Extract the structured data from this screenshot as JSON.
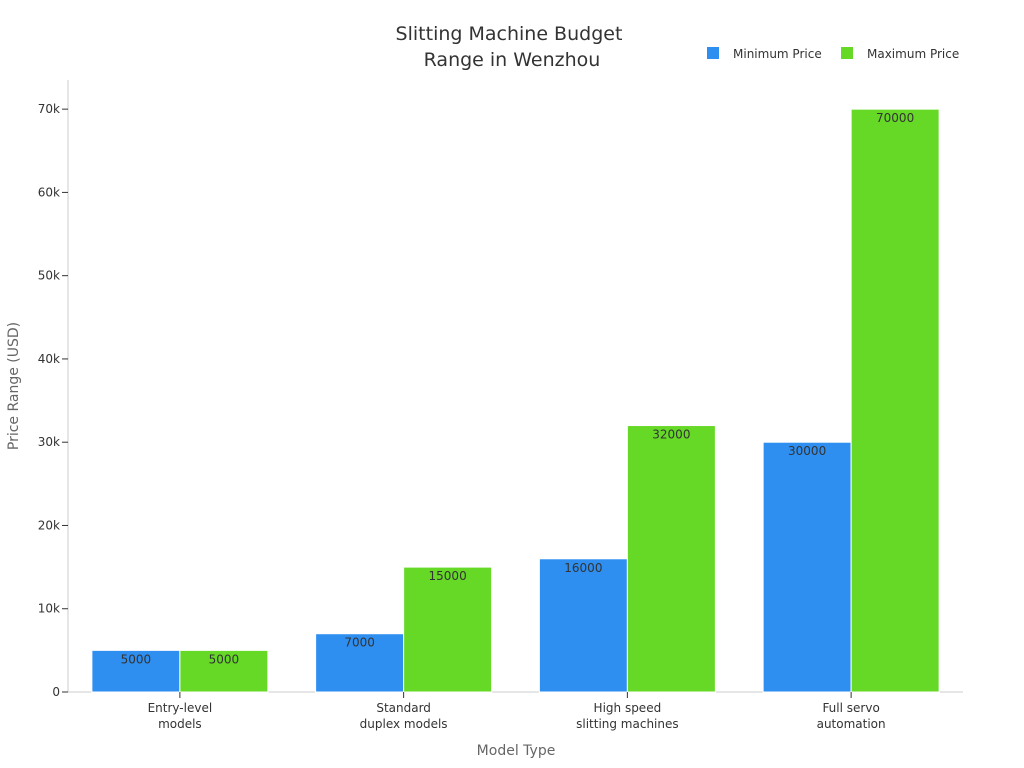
{
  "chart_data": {
    "type": "bar",
    "title": [
      "Slitting Machine Budget",
      "Range in Wenzhou"
    ],
    "xlabel": "Model Type",
    "ylabel": "Price Range (USD)",
    "categories": [
      [
        "Entry-level",
        "models"
      ],
      [
        "Standard",
        "duplex models"
      ],
      [
        "High speed",
        "slitting machines"
      ],
      [
        "Full servo",
        "automation"
      ]
    ],
    "series": [
      {
        "name": "Minimum Price",
        "color": "#2e8ff0",
        "values": [
          5000,
          7000,
          16000,
          30000
        ]
      },
      {
        "name": "Maximum Price",
        "color": "#66d926",
        "values": [
          5000,
          15000,
          32000,
          70000
        ]
      }
    ],
    "ylim": [
      0,
      73500
    ],
    "yticks": [
      0,
      10000,
      20000,
      30000,
      40000,
      50000,
      60000,
      70000
    ],
    "ytick_labels": [
      "0",
      "10k",
      "20k",
      "30k",
      "40k",
      "50k",
      "60k",
      "70k"
    ],
    "grid": false,
    "legend_position": "top-right"
  }
}
